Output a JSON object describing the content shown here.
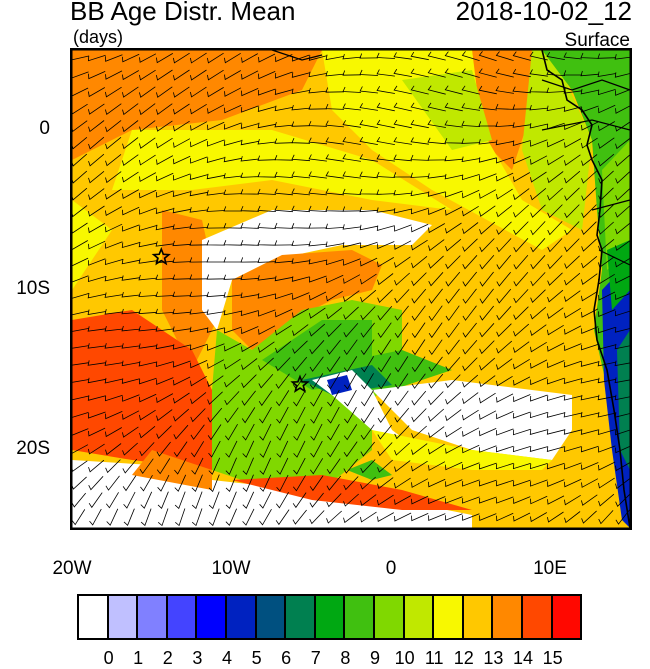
{
  "header": {
    "title": "BB Age Distr. Mean",
    "date": "2018-10-02_12",
    "units": "(days)",
    "level": "Surface"
  },
  "axes": {
    "lat_ticks": [
      {
        "label": "0",
        "value": 0
      },
      {
        "label": "10S",
        "value": -10
      },
      {
        "label": "20S",
        "value": -20
      }
    ],
    "lon_ticks": [
      {
        "label": "20W",
        "value": -20
      },
      {
        "label": "10W",
        "value": -10
      },
      {
        "label": "0",
        "value": 0
      },
      {
        "label": "10E",
        "value": 10
      }
    ],
    "lon_range": [
      -20,
      15
    ],
    "lat_range": [
      -25,
      5
    ]
  },
  "markers": [
    {
      "type": "star",
      "lon": -14.4,
      "lat": -8
    },
    {
      "type": "star",
      "lon": -5.7,
      "lat": -16
    }
  ],
  "colorbar": {
    "labels": [
      "0",
      "1",
      "2",
      "3",
      "4",
      "5",
      "6",
      "7",
      "8",
      "9",
      "10",
      "11",
      "12",
      "13",
      "14",
      "15"
    ],
    "colors": [
      "#ffffff",
      "#c0c0ff",
      "#8080ff",
      "#4444ff",
      "#0000ff",
      "#0022c0",
      "#005080",
      "#008050",
      "#00a812",
      "#40c010",
      "#80d800",
      "#c0e800",
      "#f8f800",
      "#ffc800",
      "#ff8800",
      "#ff4800",
      "#ff0800"
    ]
  }
}
